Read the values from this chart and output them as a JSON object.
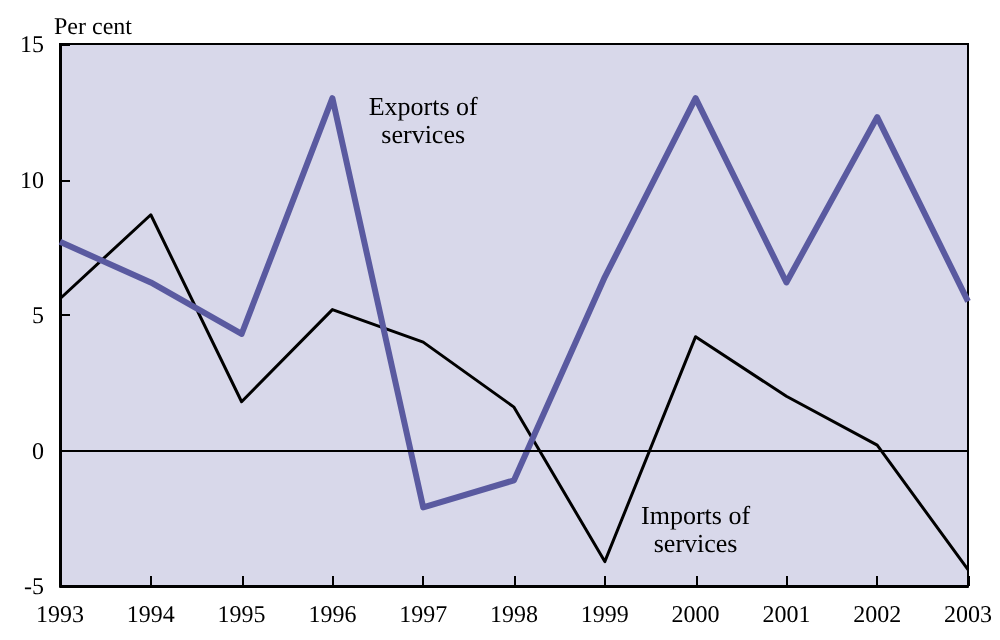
{
  "chart_data": {
    "type": "line",
    "ylabel": "Per cent",
    "categories": [
      "1993",
      "1994",
      "1995",
      "1996",
      "1997",
      "1998",
      "1999",
      "2000",
      "2001",
      "2002",
      "2003"
    ],
    "series": [
      {
        "name": "Exports of services",
        "color": "#5a5aa0",
        "values": [
          7.7,
          6.2,
          4.3,
          13.0,
          -2.1,
          -1.1,
          6.4,
          13.0,
          6.2,
          12.3,
          5.5
        ]
      },
      {
        "name": "Imports of services",
        "color": "#000000",
        "values": [
          5.6,
          8.7,
          1.8,
          5.2,
          4.0,
          1.6,
          -4.1,
          4.2,
          2.0,
          0.2,
          -4.4
        ]
      }
    ],
    "ylim": [
      -5,
      15
    ],
    "yticks": [
      -5,
      0,
      5,
      10,
      15
    ],
    "grid": false,
    "legend": false,
    "marker": "none",
    "line_style": "solid",
    "ref_lines": [
      {
        "axis": "y",
        "value": 0,
        "color": "#000000"
      }
    ]
  }
}
